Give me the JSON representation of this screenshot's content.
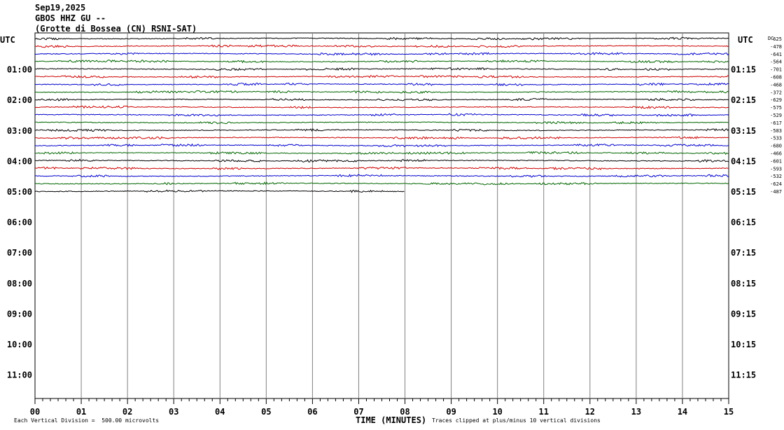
{
  "header": {
    "date": "Sep19,2025",
    "station": "GBOS HHZ GU --",
    "location": "(Grotte di Bossea (CN) RSNI-SAT)"
  },
  "chart_data": {
    "type": "line",
    "title": "GBOS HHZ GU --",
    "left_axis_label": "UTC",
    "right_axis_label": "UTC",
    "offset_label": "DC",
    "row_labels_left": [
      "01:00",
      "02:00",
      "03:00",
      "04:00",
      "05:00",
      "06:00",
      "07:00",
      "08:00",
      "09:00",
      "10:00",
      "11:00"
    ],
    "row_labels_right": [
      "01:15",
      "02:15",
      "03:15",
      "04:15",
      "05:15",
      "06:15",
      "07:15",
      "08:15",
      "09:15",
      "10:15",
      "11:15"
    ],
    "trace_offsets": [
      "625",
      "-478",
      "-641",
      "-564",
      "-701",
      "-608",
      "-468",
      "-372",
      "-629",
      "-575",
      "-529",
      "-617",
      "-583",
      "-533",
      "-680",
      "-466",
      "-601",
      "-593",
      "-532",
      "-624",
      "-487"
    ],
    "trace_colors": [
      "#000000",
      "#cc0000",
      "#0000cc",
      "#006600"
    ],
    "trace_count": 21,
    "last_trace_minutes": 8,
    "xlabel": "TIME (MINUTES)",
    "x_ticks": [
      "00",
      "01",
      "02",
      "03",
      "04",
      "05",
      "06",
      "07",
      "08",
      "09",
      "10",
      "11",
      "12",
      "13",
      "14",
      "15"
    ],
    "xlim": [
      0,
      15
    ],
    "grid": true
  },
  "footer": {
    "scale_note": "Each Vertical Division =  500.00 microvolts",
    "clip_note": "Traces clipped at plus/minus 10 vertical divisions"
  }
}
